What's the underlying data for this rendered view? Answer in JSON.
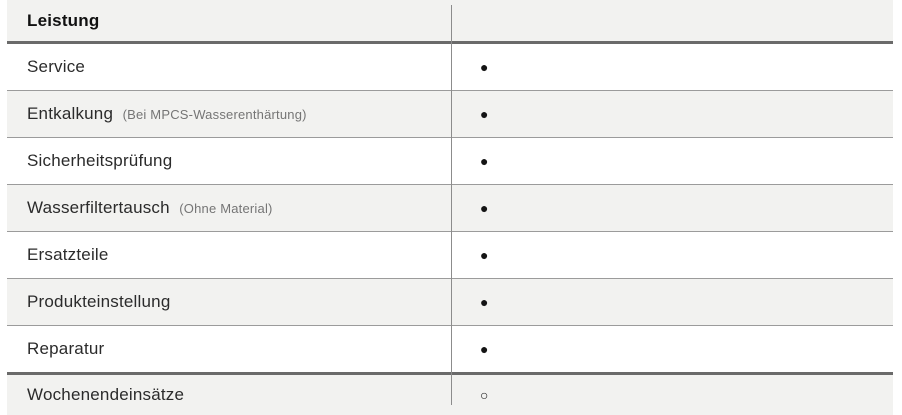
{
  "table": {
    "header": {
      "label": "Leistung"
    },
    "rows": [
      {
        "label": "Service",
        "note": "",
        "available": "yes",
        "marker": "●"
      },
      {
        "label": "Entkalkung",
        "note": "(Bei MPCS-Wasserenthärtung)",
        "available": "yes",
        "marker": "●"
      },
      {
        "label": "Sicherheitsprüfung",
        "note": "",
        "available": "yes",
        "marker": "●"
      },
      {
        "label": "Wasserfiltertausch",
        "note": "(Ohne Material)",
        "available": "yes",
        "marker": "●"
      },
      {
        "label": "Ersatzteile",
        "note": "",
        "available": "yes",
        "marker": "●"
      },
      {
        "label": "Produkteinstellung",
        "note": "",
        "available": "yes",
        "marker": "●"
      },
      {
        "label": "Reparatur",
        "note": "",
        "available": "yes",
        "marker": "●"
      },
      {
        "label": "Wochenendeinsätze",
        "note": "",
        "available": "partial",
        "marker": "○"
      }
    ]
  },
  "colors": {
    "row_alt_bg": "#f2f2f0",
    "thin_line": "#9b9b9b",
    "thick_line": "#6a6a6a",
    "divider_line": "#8c8c8c",
    "text": "#2b2b2b",
    "note_text": "#757575",
    "marker": "#141414"
  }
}
